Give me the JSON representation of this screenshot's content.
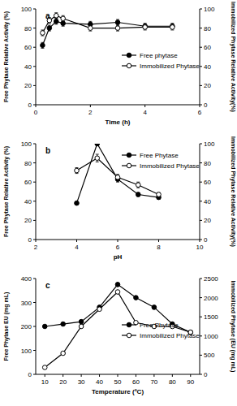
{
  "chart_data": [
    {
      "type": "line",
      "annotation": "a",
      "x_label": "Time (h)",
      "y_label": "Free Phytase Relative Activity (%)",
      "y2_label": "Immobilized Phytase Relative Activity(%)",
      "x": [
        0.25,
        0.5,
        0.75,
        1,
        2,
        3,
        4,
        5
      ],
      "xlim": [
        0,
        6
      ],
      "xticks": [
        0,
        2,
        4,
        6
      ],
      "ylim": [
        0,
        100
      ],
      "yticks": [
        0,
        20,
        40,
        60,
        80,
        100
      ],
      "y2lim": [
        0,
        100
      ],
      "y2ticks": [
        0,
        20,
        40,
        60,
        80,
        100
      ],
      "legend": "center right",
      "series": [
        {
          "name": "Free phytase",
          "color": "#000000",
          "marker": "filled_circle",
          "values": [
            62,
            80,
            87,
            85,
            84,
            86,
            82,
            82
          ],
          "errors": [
            3,
            3,
            3,
            3,
            3,
            3,
            3,
            3
          ]
        },
        {
          "name": "Immobilized Phytase",
          "color": "#000000",
          "marker": "open_circle",
          "axis": "y2",
          "values": [
            75,
            88,
            93,
            90,
            80,
            80,
            81,
            81
          ],
          "errors": [
            3,
            3,
            3,
            3,
            3,
            3,
            3,
            3
          ]
        }
      ]
    },
    {
      "type": "line",
      "annotation": "b",
      "x_label": "pH",
      "y_label": "Free Phytase Relative Activity (%)",
      "y2_label": "Immobilized Phytase Relative Activity(%)",
      "x": [
        4,
        5,
        6,
        7,
        8
      ],
      "xlim": [
        2,
        10
      ],
      "xticks": [
        2,
        4,
        6,
        8,
        10
      ],
      "ylim": [
        0,
        100
      ],
      "yticks": [
        0,
        20,
        40,
        60,
        80,
        100
      ],
      "y2lim": [
        0,
        100
      ],
      "y2ticks": [
        0,
        20,
        40,
        60,
        80,
        100
      ],
      "legend": "upper right",
      "series": [
        {
          "name": "Free Phytase",
          "color": "#000000",
          "marker": "filled_circle",
          "values": [
            38,
            100,
            63,
            47,
            44
          ],
          "errors": [
            1,
            1,
            3,
            2,
            2
          ]
        },
        {
          "name": "Immobilized Phytase",
          "color": "#000000",
          "marker": "open_circle",
          "axis": "y2",
          "values": [
            72,
            85,
            65,
            57,
            47
          ],
          "errors": [
            3,
            4,
            3,
            3,
            2
          ]
        }
      ]
    },
    {
      "type": "line",
      "annotation": "c",
      "x_label": "Temperature (ºC)",
      "y_label": "Free Phytase EU (mg mL)",
      "y2_label": "Immobilized Phytase (EU (mg mL)",
      "x": [
        10,
        20,
        30,
        40,
        50,
        60,
        70,
        80,
        90
      ],
      "xlim": [
        5,
        95
      ],
      "xticks": [
        10,
        20,
        30,
        40,
        50,
        60,
        70,
        80,
        90
      ],
      "ylim": [
        0,
        400
      ],
      "yticks": [
        0,
        100,
        200,
        300,
        400
      ],
      "y2lim": [
        0,
        2500
      ],
      "y2ticks": [
        0,
        500,
        1000,
        1500,
        2000,
        2500
      ],
      "legend": "center right",
      "series": [
        {
          "name": "Free Phytase",
          "color": "#000000",
          "marker": "filled_circle",
          "values": [
            200,
            210,
            220,
            280,
            375,
            320,
            280,
            210,
            175
          ]
        },
        {
          "name": "Immobilized Phytase",
          "color": "#000000",
          "marker": "open_circle",
          "axis": "y2",
          "values": [
            180,
            550,
            1250,
            1700,
            2150,
            1350,
            1250,
            1250,
            1100
          ]
        }
      ]
    }
  ]
}
